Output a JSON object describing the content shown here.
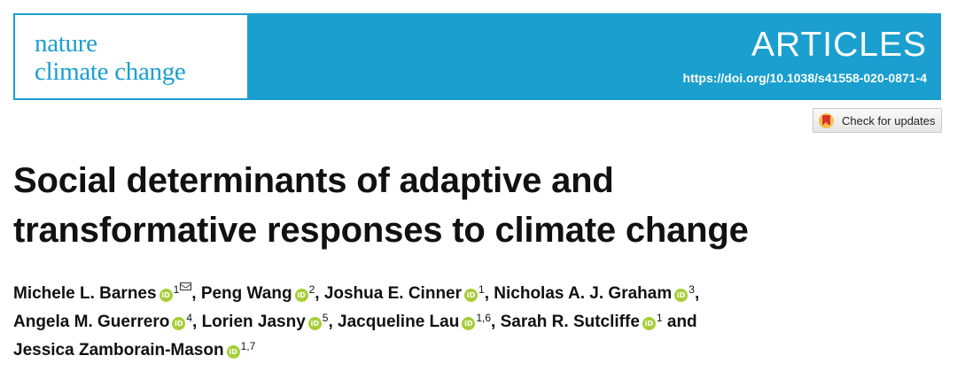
{
  "header": {
    "journal_line1": "nature",
    "journal_line2": "climate change",
    "section": "ARTICLES",
    "doi": "https://doi.org/10.1038/s41558-020-0871-4",
    "colors": {
      "banner": "#1a9fcf",
      "orcid": "#a6ce39"
    }
  },
  "updates_button": {
    "label": "Check for updates",
    "icon": "bookmark-icon"
  },
  "article": {
    "title_line1": "Social determinants of adaptive and",
    "title_line2": "transformative responses to climate change"
  },
  "authors": [
    {
      "name": "Michele L. Barnes",
      "aff": "1",
      "corresponding": true
    },
    {
      "name": "Peng Wang",
      "aff": "2"
    },
    {
      "name": "Joshua E. Cinner",
      "aff": "1"
    },
    {
      "name": "Nicholas A. J. Graham",
      "aff": "3"
    },
    {
      "name": "Angela M. Guerrero",
      "aff": "4"
    },
    {
      "name": "Lorien Jasny",
      "aff": "5"
    },
    {
      "name": "Jacqueline Lau",
      "aff": "1,6"
    },
    {
      "name": "Sarah R. Sutcliffe",
      "aff": "1"
    },
    {
      "name": "Jessica Zamborain-Mason",
      "aff": "1,7"
    }
  ],
  "connectors": {
    "comma": ", ",
    "and": " and "
  },
  "orcid_badge": "iD"
}
